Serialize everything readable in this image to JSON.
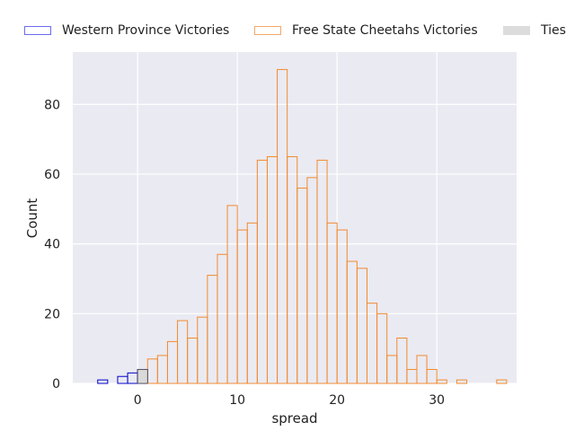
{
  "chart_data": {
    "type": "bar",
    "xlabel": "spread",
    "ylabel": "Count",
    "xlim": [
      -6.5,
      38
    ],
    "ylim": [
      0,
      95
    ],
    "grid": true,
    "legend_position": "top",
    "x_ticks": [
      0,
      10,
      20,
      30
    ],
    "y_ticks": [
      0,
      20,
      40,
      60,
      80
    ],
    "bin_width": 1,
    "series": [
      {
        "name": "Western Province Victories",
        "color": "#0000cc",
        "fill": "none",
        "bins": [
          {
            "x": -4,
            "count": 1
          },
          {
            "x": -2,
            "count": 2
          },
          {
            "x": -1,
            "count": 3
          },
          {
            "x": 0,
            "count": 4
          }
        ]
      },
      {
        "name": "Free State Cheetahs Victories",
        "color": "#f28a2e",
        "fill": "none",
        "bins": [
          {
            "x": 1,
            "count": 7
          },
          {
            "x": 2,
            "count": 8
          },
          {
            "x": 3,
            "count": 12
          },
          {
            "x": 4,
            "count": 18
          },
          {
            "x": 5,
            "count": 13
          },
          {
            "x": 6,
            "count": 19
          },
          {
            "x": 7,
            "count": 31
          },
          {
            "x": 8,
            "count": 37
          },
          {
            "x": 9,
            "count": 51
          },
          {
            "x": 10,
            "count": 44
          },
          {
            "x": 11,
            "count": 46
          },
          {
            "x": 12,
            "count": 64
          },
          {
            "x": 13,
            "count": 65
          },
          {
            "x": 14,
            "count": 90
          },
          {
            "x": 15,
            "count": 65
          },
          {
            "x": 16,
            "count": 56
          },
          {
            "x": 17,
            "count": 59
          },
          {
            "x": 18,
            "count": 64
          },
          {
            "x": 19,
            "count": 46
          },
          {
            "x": 20,
            "count": 44
          },
          {
            "x": 21,
            "count": 35
          },
          {
            "x": 22,
            "count": 33
          },
          {
            "x": 23,
            "count": 23
          },
          {
            "x": 24,
            "count": 20
          },
          {
            "x": 25,
            "count": 8
          },
          {
            "x": 26,
            "count": 13
          },
          {
            "x": 27,
            "count": 4
          },
          {
            "x": 28,
            "count": 8
          },
          {
            "x": 29,
            "count": 4
          },
          {
            "x": 30,
            "count": 1
          },
          {
            "x": 32,
            "count": 1
          },
          {
            "x": 36,
            "count": 1
          }
        ]
      },
      {
        "name": "Ties",
        "color": "#d9d9d9",
        "fill": "#d9d9d9",
        "bins": [
          {
            "x": 0,
            "count": 4
          }
        ]
      }
    ]
  }
}
